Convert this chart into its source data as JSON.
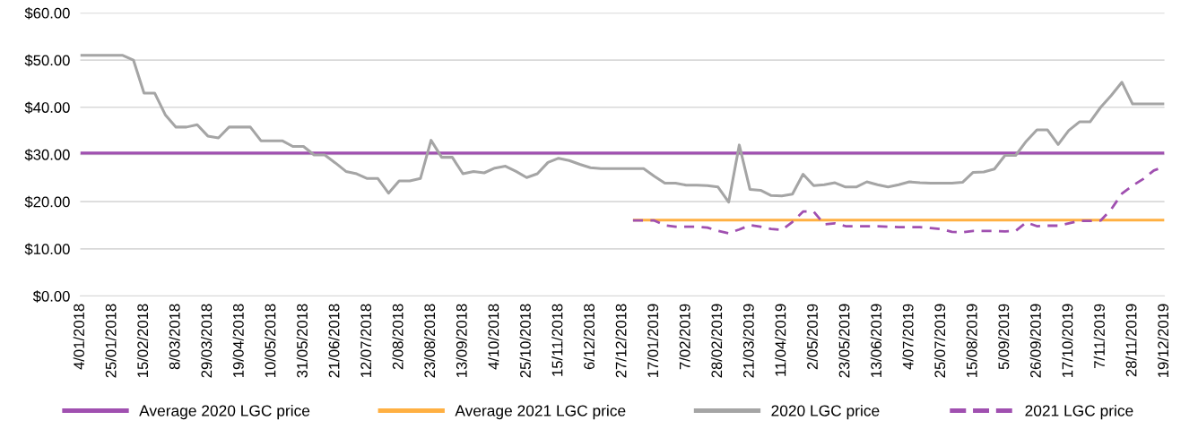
{
  "chart_data": {
    "type": "line",
    "categories": [
      "4/01/2018",
      null,
      null,
      "25/01/2018",
      null,
      null,
      "15/02/2018",
      null,
      null,
      "8/03/2018",
      null,
      null,
      "29/03/2018",
      null,
      null,
      "19/04/2018",
      null,
      null,
      "10/05/2018",
      null,
      null,
      "31/05/2018",
      null,
      null,
      "21/06/2018",
      null,
      null,
      "12/07/2018",
      null,
      null,
      "2/08/2018",
      null,
      null,
      "23/08/2018",
      null,
      null,
      "13/09/2018",
      null,
      null,
      "4/10/2018",
      null,
      null,
      "25/10/2018",
      null,
      null,
      "15/11/2018",
      null,
      null,
      "6/12/2018",
      null,
      null,
      "27/12/2018",
      null,
      null,
      "17/01/2019",
      null,
      null,
      "7/02/2019",
      null,
      null,
      "28/02/2019",
      null,
      null,
      "21/03/2019",
      null,
      null,
      "11/04/2019",
      null,
      null,
      "2/05/2019",
      null,
      null,
      "23/05/2019",
      null,
      null,
      "13/06/2019",
      null,
      null,
      "4/07/2019",
      null,
      null,
      "25/07/2019",
      null,
      null,
      "15/08/2019",
      null,
      null,
      "5/09/2019",
      null,
      null,
      "26/09/2019",
      null,
      null,
      "17/10/2019",
      null,
      null,
      "7/11/2019",
      null,
      null,
      "28/11/2019",
      null,
      null,
      "19/12/2019"
    ],
    "series": [
      {
        "name": "Average 2020 LGC price",
        "color": "#a050b0",
        "line_style": "solid",
        "values": [
          30.3,
          30.3,
          30.3,
          30.3,
          30.3,
          30.3,
          30.3,
          30.3,
          30.3,
          30.3,
          30.3,
          30.3,
          30.3,
          30.3,
          30.3,
          30.3,
          30.3,
          30.3,
          30.3,
          30.3,
          30.3,
          30.3,
          30.3,
          30.3,
          30.3,
          30.3,
          30.3,
          30.3,
          30.3,
          30.3,
          30.3,
          30.3,
          30.3,
          30.3,
          30.3,
          30.3,
          30.3,
          30.3,
          30.3,
          30.3,
          30.3,
          30.3,
          30.3,
          30.3,
          30.3,
          30.3,
          30.3,
          30.3,
          30.3,
          30.3,
          30.3,
          30.3,
          30.3,
          30.3,
          30.3,
          30.3,
          30.3,
          30.3,
          30.3,
          30.3,
          30.3,
          30.3,
          30.3,
          30.3,
          30.3,
          30.3,
          30.3,
          30.3,
          30.3,
          30.3,
          30.3,
          30.3,
          30.3,
          30.3,
          30.3,
          30.3,
          30.3,
          30.3,
          30.3,
          30.3,
          30.3,
          30.3,
          30.3,
          30.3,
          30.3,
          30.3,
          30.3,
          30.3,
          30.3,
          30.3,
          30.3,
          30.3,
          30.3,
          30.3,
          30.3,
          30.3,
          30.3,
          30.3,
          30.3,
          30.3,
          30.3,
          30.3,
          30.3
        ]
      },
      {
        "name": "Average 2021 LGC price",
        "color": "#ffb042",
        "line_style": "solid",
        "values": [
          null,
          null,
          null,
          null,
          null,
          null,
          null,
          null,
          null,
          null,
          null,
          null,
          null,
          null,
          null,
          null,
          null,
          null,
          null,
          null,
          null,
          null,
          null,
          null,
          null,
          null,
          null,
          null,
          null,
          null,
          null,
          null,
          null,
          null,
          null,
          null,
          null,
          null,
          null,
          null,
          null,
          null,
          null,
          null,
          null,
          null,
          null,
          null,
          null,
          null,
          null,
          null,
          16.1,
          16.1,
          16.1,
          16.1,
          16.1,
          16.1,
          16.1,
          16.1,
          16.1,
          16.1,
          16.1,
          16.1,
          16.1,
          16.1,
          16.1,
          16.1,
          16.1,
          16.1,
          16.1,
          16.1,
          16.1,
          16.1,
          16.1,
          16.1,
          16.1,
          16.1,
          16.1,
          16.1,
          16.1,
          16.1,
          16.1,
          16.1,
          16.1,
          16.1,
          16.1,
          16.1,
          16.1,
          16.1,
          16.1,
          16.1,
          16.1,
          16.1,
          16.1,
          16.1,
          16.1,
          16.1,
          16.1,
          16.1,
          16.1,
          16.1,
          16.1
        ]
      },
      {
        "name": "2020 LGC price",
        "color": "#a5a5a5",
        "line_style": "solid",
        "values": [
          51,
          51,
          51,
          51,
          51,
          50,
          43,
          43,
          38.4,
          35.8,
          35.8,
          36.3,
          33.9,
          33.5,
          35.8,
          35.8,
          35.8,
          32.9,
          32.9,
          32.9,
          31.7,
          31.7,
          29.9,
          29.9,
          28.2,
          26.4,
          25.9,
          24.9,
          24.9,
          21.8,
          24.4,
          24.4,
          24.9,
          33.0,
          29.4,
          29.4,
          25.9,
          26.4,
          26.1,
          27.1,
          27.5,
          26.4,
          25.1,
          25.9,
          28.3,
          29.2,
          28.7,
          27.9,
          27.2,
          27.0,
          27.0,
          27.0,
          27.0,
          27.0,
          25.4,
          23.9,
          23.9,
          23.5,
          23.5,
          23.4,
          23.1,
          19.9,
          32.0,
          22.6,
          22.4,
          21.3,
          21.2,
          21.6,
          25.8,
          23.4,
          23.6,
          24.0,
          23.1,
          23.1,
          24.2,
          23.6,
          23.1,
          23.6,
          24.2,
          24.0,
          23.9,
          23.9,
          23.9,
          24.1,
          26.2,
          26.3,
          26.9,
          29.8,
          29.8,
          32.8,
          35.2,
          35.2,
          32.1,
          35.1,
          36.9,
          36.9,
          40.0,
          42.5,
          45.3,
          40.7,
          40.7,
          40.7,
          40.7
        ]
      },
      {
        "name": "2021 LGC price",
        "color": "#a050b0",
        "line_style": "dashed",
        "values": [
          null,
          null,
          null,
          null,
          null,
          null,
          null,
          null,
          null,
          null,
          null,
          null,
          null,
          null,
          null,
          null,
          null,
          null,
          null,
          null,
          null,
          null,
          null,
          null,
          null,
          null,
          null,
          null,
          null,
          null,
          null,
          null,
          null,
          null,
          null,
          null,
          null,
          null,
          null,
          null,
          null,
          null,
          null,
          null,
          null,
          null,
          null,
          null,
          null,
          null,
          null,
          null,
          16.0,
          16.0,
          16.0,
          15.0,
          14.7,
          14.7,
          14.7,
          14.5,
          13.8,
          13.3,
          14.1,
          15.0,
          14.7,
          14.2,
          14.0,
          15.7,
          17.9,
          17.9,
          15.2,
          15.4,
          14.8,
          14.8,
          14.8,
          14.8,
          14.7,
          14.6,
          14.6,
          14.6,
          14.4,
          14.2,
          13.6,
          13.5,
          13.8,
          13.8,
          13.8,
          13.7,
          13.8,
          15.6,
          14.8,
          14.9,
          14.9,
          15.4,
          15.9,
          15.9,
          16.0,
          18.4,
          21.7,
          23.4,
          24.8,
          26.6,
          27.4
        ]
      }
    ],
    "ylim": [
      0,
      60
    ],
    "yticks": [
      {
        "value": 0,
        "label": "$0.00"
      },
      {
        "value": 10,
        "label": "$10.00"
      },
      {
        "value": 20,
        "label": "$20.00"
      },
      {
        "value": 30,
        "label": "$30.00"
      },
      {
        "value": 40,
        "label": "$40.00"
      },
      {
        "value": 50,
        "label": "$50.00"
      },
      {
        "value": 60,
        "label": "$60.00"
      }
    ],
    "grid": "y",
    "legend": "bottom"
  }
}
